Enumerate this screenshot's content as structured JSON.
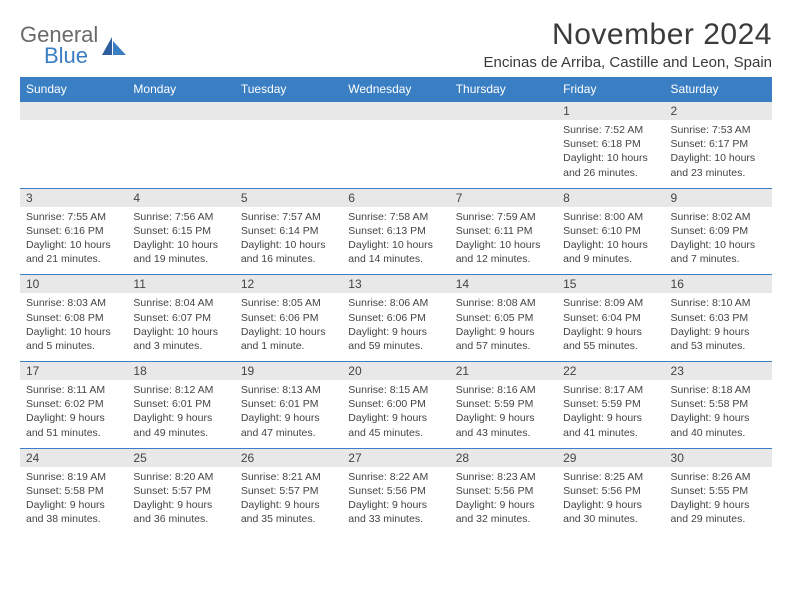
{
  "logo": {
    "word1": "General",
    "word2": "Blue",
    "text_color": "#6a6a6a",
    "blue_color": "#3a7fc4"
  },
  "header": {
    "month_title": "November 2024",
    "location": "Encinas de Arriba, Castille and Leon, Spain"
  },
  "calendar": {
    "header_bg": "#3a7fc4",
    "header_fg": "#ffffff",
    "date_row_bg": "#e8e8e8",
    "border_color": "#3a7fc4",
    "text_color": "#444444",
    "day_names": [
      "Sunday",
      "Monday",
      "Tuesday",
      "Wednesday",
      "Thursday",
      "Friday",
      "Saturday"
    ],
    "weeks": [
      {
        "dates": [
          "",
          "",
          "",
          "",
          "",
          "1",
          "2"
        ],
        "details": [
          "",
          "",
          "",
          "",
          "",
          "Sunrise: 7:52 AM\nSunset: 6:18 PM\nDaylight: 10 hours and 26 minutes.",
          "Sunrise: 7:53 AM\nSunset: 6:17 PM\nDaylight: 10 hours and 23 minutes."
        ]
      },
      {
        "dates": [
          "3",
          "4",
          "5",
          "6",
          "7",
          "8",
          "9"
        ],
        "details": [
          "Sunrise: 7:55 AM\nSunset: 6:16 PM\nDaylight: 10 hours and 21 minutes.",
          "Sunrise: 7:56 AM\nSunset: 6:15 PM\nDaylight: 10 hours and 19 minutes.",
          "Sunrise: 7:57 AM\nSunset: 6:14 PM\nDaylight: 10 hours and 16 minutes.",
          "Sunrise: 7:58 AM\nSunset: 6:13 PM\nDaylight: 10 hours and 14 minutes.",
          "Sunrise: 7:59 AM\nSunset: 6:11 PM\nDaylight: 10 hours and 12 minutes.",
          "Sunrise: 8:00 AM\nSunset: 6:10 PM\nDaylight: 10 hours and 9 minutes.",
          "Sunrise: 8:02 AM\nSunset: 6:09 PM\nDaylight: 10 hours and 7 minutes."
        ]
      },
      {
        "dates": [
          "10",
          "11",
          "12",
          "13",
          "14",
          "15",
          "16"
        ],
        "details": [
          "Sunrise: 8:03 AM\nSunset: 6:08 PM\nDaylight: 10 hours and 5 minutes.",
          "Sunrise: 8:04 AM\nSunset: 6:07 PM\nDaylight: 10 hours and 3 minutes.",
          "Sunrise: 8:05 AM\nSunset: 6:06 PM\nDaylight: 10 hours and 1 minute.",
          "Sunrise: 8:06 AM\nSunset: 6:06 PM\nDaylight: 9 hours and 59 minutes.",
          "Sunrise: 8:08 AM\nSunset: 6:05 PM\nDaylight: 9 hours and 57 minutes.",
          "Sunrise: 8:09 AM\nSunset: 6:04 PM\nDaylight: 9 hours and 55 minutes.",
          "Sunrise: 8:10 AM\nSunset: 6:03 PM\nDaylight: 9 hours and 53 minutes."
        ]
      },
      {
        "dates": [
          "17",
          "18",
          "19",
          "20",
          "21",
          "22",
          "23"
        ],
        "details": [
          "Sunrise: 8:11 AM\nSunset: 6:02 PM\nDaylight: 9 hours and 51 minutes.",
          "Sunrise: 8:12 AM\nSunset: 6:01 PM\nDaylight: 9 hours and 49 minutes.",
          "Sunrise: 8:13 AM\nSunset: 6:01 PM\nDaylight: 9 hours and 47 minutes.",
          "Sunrise: 8:15 AM\nSunset: 6:00 PM\nDaylight: 9 hours and 45 minutes.",
          "Sunrise: 8:16 AM\nSunset: 5:59 PM\nDaylight: 9 hours and 43 minutes.",
          "Sunrise: 8:17 AM\nSunset: 5:59 PM\nDaylight: 9 hours and 41 minutes.",
          "Sunrise: 8:18 AM\nSunset: 5:58 PM\nDaylight: 9 hours and 40 minutes."
        ]
      },
      {
        "dates": [
          "24",
          "25",
          "26",
          "27",
          "28",
          "29",
          "30"
        ],
        "details": [
          "Sunrise: 8:19 AM\nSunset: 5:58 PM\nDaylight: 9 hours and 38 minutes.",
          "Sunrise: 8:20 AM\nSunset: 5:57 PM\nDaylight: 9 hours and 36 minutes.",
          "Sunrise: 8:21 AM\nSunset: 5:57 PM\nDaylight: 9 hours and 35 minutes.",
          "Sunrise: 8:22 AM\nSunset: 5:56 PM\nDaylight: 9 hours and 33 minutes.",
          "Sunrise: 8:23 AM\nSunset: 5:56 PM\nDaylight: 9 hours and 32 minutes.",
          "Sunrise: 8:25 AM\nSunset: 5:56 PM\nDaylight: 9 hours and 30 minutes.",
          "Sunrise: 8:26 AM\nSunset: 5:55 PM\nDaylight: 9 hours and 29 minutes."
        ]
      }
    ]
  }
}
